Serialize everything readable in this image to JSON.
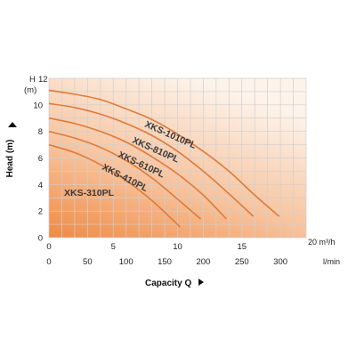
{
  "chart_data": {
    "type": "line",
    "ylabel": "Head (m)",
    "y_unit_top": "H",
    "y_unit_bottom": "(m)",
    "ylim": [
      0,
      12
    ],
    "yticks": [
      "0",
      "2",
      "4",
      "6",
      "8",
      "10",
      "12"
    ],
    "xlabel": "Capacity Q",
    "x_top_unit": "20 m³/h",
    "x_bottom_unit": "l/min",
    "xlim": [
      0,
      20
    ],
    "x_top_ticks": [
      {
        "value": 0,
        "label": "0"
      },
      {
        "value": 5,
        "label": "5"
      },
      {
        "value": 10,
        "label": "10"
      },
      {
        "value": 15,
        "label": "15"
      }
    ],
    "x_bottom_ticks": [
      {
        "value": 0,
        "label": "0"
      },
      {
        "value": 50,
        "label": "50"
      },
      {
        "value": 100,
        "label": "100"
      },
      {
        "value": 150,
        "label": "150"
      },
      {
        "value": 200,
        "label": "200"
      },
      {
        "value": 250,
        "label": "250"
      },
      {
        "value": 300,
        "label": "300"
      }
    ],
    "grid": true,
    "colors": {
      "curve": "#e07b39",
      "grid": "#cfcfcf",
      "fill_light": "#fdf0e6",
      "fill_dark": "#f08a43"
    },
    "series": [
      {
        "name": "XKS-1010PL",
        "x": [
          0,
          2,
          4,
          6,
          8,
          10,
          12,
          14,
          16,
          17.9
        ],
        "y": [
          11.1,
          10.8,
          10.4,
          9.7,
          8.9,
          7.8,
          6.5,
          5.0,
          3.2,
          1.6
        ]
      },
      {
        "name": "XKS-810PL",
        "x": [
          0,
          2,
          4,
          6,
          8,
          10,
          12,
          14,
          15.9
        ],
        "y": [
          10.1,
          9.8,
          9.3,
          8.6,
          7.7,
          6.5,
          5.0,
          3.3,
          1.6
        ]
      },
      {
        "name": "XKS-610PL",
        "x": [
          0,
          2,
          4,
          6,
          8,
          10,
          12,
          13.8
        ],
        "y": [
          9.0,
          8.6,
          8.0,
          7.2,
          6.1,
          4.8,
          3.2,
          1.4
        ]
      },
      {
        "name": "XKS-410PL",
        "x": [
          0,
          2,
          4,
          6,
          8,
          10,
          11.8
        ],
        "y": [
          8.0,
          7.5,
          6.8,
          5.8,
          4.5,
          2.9,
          1.4
        ]
      },
      {
        "name": "XKS-310PL",
        "x": [
          0,
          2,
          4,
          6,
          8,
          10.2
        ],
        "y": [
          7.0,
          6.4,
          5.5,
          4.3,
          2.8,
          0.8
        ]
      }
    ]
  }
}
